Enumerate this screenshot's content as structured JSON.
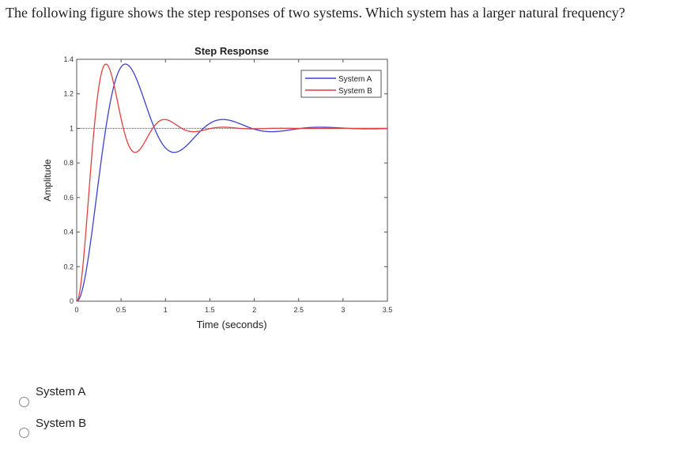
{
  "question": {
    "text": "The following figure shows the step responses of two systems. Which system has a larger natural frequency?"
  },
  "chart_data": {
    "type": "line",
    "title": "Step Response",
    "xlabel": "Time (seconds)",
    "ylabel": "Amplitude",
    "xlim": [
      0,
      3.5
    ],
    "ylim": [
      0,
      1.4
    ],
    "x_ticks": [
      "0",
      "0.5",
      "1",
      "1.5",
      "2",
      "2.5",
      "3",
      "3.5"
    ],
    "y_ticks": [
      "0",
      "0.2",
      "0.4",
      "0.6",
      "0.8",
      "1",
      "1.2",
      "1.4"
    ],
    "reference_level": 1,
    "legend_position": "top-right",
    "grid": false,
    "series": [
      {
        "name": "System A",
        "color": "#4040d0",
        "model": "second-order",
        "zeta": 0.3,
        "wn": 6.0
      },
      {
        "name": "System B",
        "color": "#e04040",
        "model": "second-order",
        "zeta": 0.3,
        "wn": 10.0
      }
    ]
  },
  "options": [
    {
      "label": "System A"
    },
    {
      "label": "System B"
    }
  ]
}
